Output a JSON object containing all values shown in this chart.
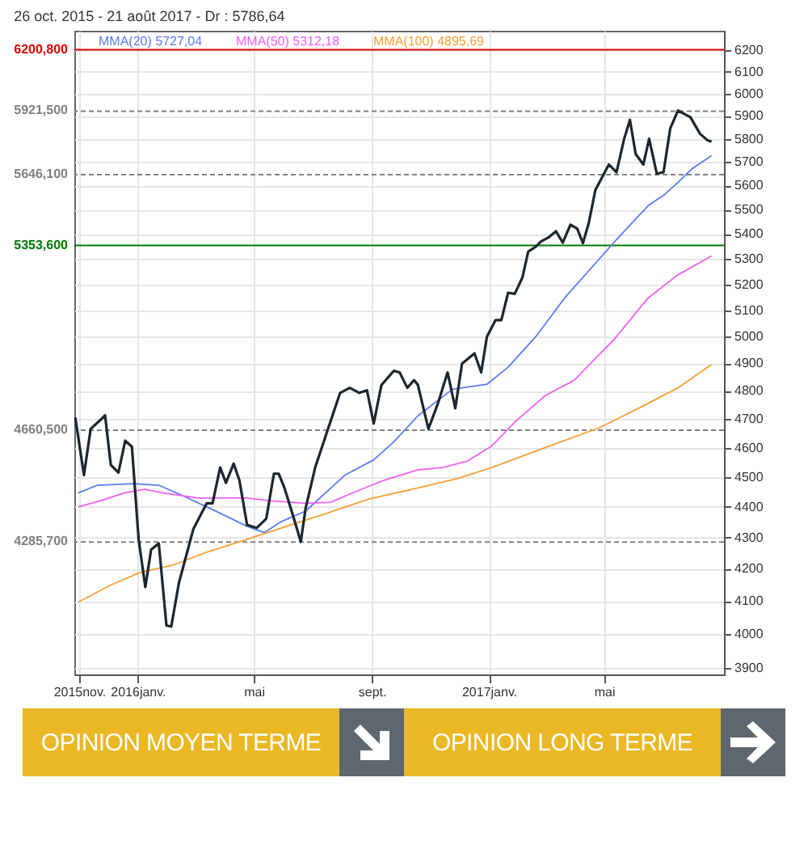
{
  "chart_data": {
    "type": "line",
    "title": "26 oct. 2015 - 21 août 2017 - Dr : 5786,64",
    "annotations": [
      "OPINION MOYEN TERME",
      "OPINION LONG TERME"
    ],
    "xlim": [
      "2015-10-27",
      "2017-09-03"
    ],
    "xticks": [
      {
        "value": "2015-11-01",
        "label": "2015nov."
      },
      {
        "value": "2016-01-01",
        "label": "2016janv."
      },
      {
        "value": "2016-05-01",
        "label": "mai"
      },
      {
        "value": "2016-09-01",
        "label": "sept."
      },
      {
        "value": "2017-01-01",
        "label": "2017janv."
      },
      {
        "value": "2017-05-01",
        "label": "mai"
      }
    ],
    "ylim": [
      3880,
      6290
    ],
    "yticks": [
      3900,
      4000,
      4100,
      4200,
      4300,
      4400,
      4500,
      4600,
      4700,
      4800,
      4900,
      5000,
      5100,
      5200,
      5300,
      5400,
      5500,
      5600,
      5700,
      5800,
      5900,
      6000,
      6100,
      6200
    ],
    "log": "y",
    "grid": true,
    "legend": "top left",
    "ref_lines": [
      {
        "axis": "y",
        "value": 6200.8,
        "label": "6200,800",
        "color": "#e00000"
      },
      {
        "axis": "y",
        "value": 5921.5,
        "label": "5921,500",
        "color": "#808080",
        "line_style": "dashed"
      },
      {
        "axis": "y",
        "value": 5646.1,
        "label": "5646,100",
        "color": "#808080",
        "line_style": "dashed"
      },
      {
        "axis": "y",
        "value": 5353.6,
        "label": "5353,600",
        "color": "#007a00"
      },
      {
        "axis": "y",
        "value": 4660.5,
        "label": "4660,500",
        "color": "#808080",
        "line_style": "dashed"
      },
      {
        "axis": "y",
        "value": 4285.7,
        "label": "4285,700",
        "color": "#808080",
        "line_style": "dashed"
      }
    ],
    "series": [
      {
        "name": "MMA(20) 5727,04",
        "color": "#5a7cf2",
        "x": [
          "2015-10-31",
          "2015-11-20",
          "2015-12-28",
          "2016-01-23",
          "2016-02-17",
          "2016-03-19",
          "2016-04-24",
          "2016-05-12",
          "2016-05-30",
          "2016-06-24",
          "2016-08-04",
          "2016-09-03",
          "2016-09-24",
          "2016-10-19",
          "2016-11-24",
          "2016-12-30",
          "2017-01-21",
          "2017-02-19",
          "2017-03-21",
          "2017-04-21",
          "2017-05-12",
          "2017-06-01",
          "2017-06-16",
          "2017-07-02",
          "2017-07-17",
          "2017-08-01",
          "2017-08-21"
        ],
        "values": [
          4446,
          4472,
          4477,
          4472,
          4437,
          4391,
          4336,
          4316,
          4352,
          4386,
          4506,
          4558,
          4620,
          4711,
          4806,
          4824,
          4886,
          5000,
          5147,
          5278,
          5369,
          5453,
          5516,
          5559,
          5613,
          5672,
          5727
        ]
      },
      {
        "name": "MMA(50) 5312,18",
        "color": "#f060f0",
        "x": [
          "2015-10-31",
          "2015-11-23",
          "2015-12-18",
          "2016-01-08",
          "2016-01-28",
          "2016-03-04",
          "2016-04-24",
          "2016-05-19",
          "2016-06-24",
          "2016-07-20",
          "2016-08-14",
          "2016-09-14",
          "2016-10-19",
          "2016-11-14",
          "2016-12-09",
          "2017-01-04",
          "2017-01-29",
          "2017-03-01",
          "2017-03-31",
          "2017-05-12",
          "2017-06-16",
          "2017-07-17",
          "2017-08-21"
        ],
        "values": [
          4400,
          4420,
          4446,
          4458,
          4446,
          4429,
          4429,
          4420,
          4412,
          4415,
          4449,
          4489,
          4524,
          4532,
          4553,
          4606,
          4692,
          4784,
          4839,
          4991,
          5147,
          5237,
          5312
        ]
      },
      {
        "name": "MMA(100) 4895,69",
        "color": "#f5a033",
        "x": [
          "2015-10-31",
          "2015-12-03",
          "2016-01-03",
          "2016-02-07",
          "2016-03-13",
          "2016-04-24",
          "2016-06-04",
          "2016-07-15",
          "2016-08-29",
          "2016-10-19",
          "2016-11-29",
          "2017-01-04",
          "2017-02-24",
          "2017-04-26",
          "2017-06-06",
          "2017-07-17",
          "2017-08-21"
        ],
        "values": [
          4096,
          4148,
          4188,
          4212,
          4253,
          4294,
          4336,
          4378,
          4426,
          4463,
          4494,
          4532,
          4594,
          4669,
          4738,
          4811,
          4896
        ]
      },
      {
        "color": "#1c2630",
        "x": [
          "2015-10-28",
          "2015-11-06",
          "2015-11-13",
          "2015-11-23",
          "2015-11-28",
          "2015-12-04",
          "2015-12-12",
          "2015-12-19",
          "2015-12-26",
          "2016-01-02",
          "2016-01-09",
          "2016-01-15",
          "2016-01-23",
          "2016-01-31",
          "2016-02-05",
          "2016-02-13",
          "2016-02-28",
          "2016-03-13",
          "2016-03-19",
          "2016-03-27",
          "2016-04-02",
          "2016-04-10",
          "2016-04-16",
          "2016-04-24",
          "2016-05-04",
          "2016-05-14",
          "2016-05-22",
          "2016-05-27",
          "2016-06-02",
          "2016-06-11",
          "2016-06-19",
          "2016-06-24",
          "2016-07-04",
          "2016-07-20",
          "2016-07-30",
          "2016-08-09",
          "2016-08-19",
          "2016-08-27",
          "2016-09-03",
          "2016-09-11",
          "2016-09-24",
          "2016-09-30",
          "2016-10-08",
          "2016-10-15",
          "2016-10-19",
          "2016-10-30",
          "2016-11-09",
          "2016-11-19",
          "2016-11-27",
          "2016-12-04",
          "2016-12-17",
          "2016-12-24",
          "2016-12-30",
          "2017-01-08",
          "2017-01-14",
          "2017-01-21",
          "2017-01-28",
          "2017-02-05",
          "2017-02-11",
          "2017-02-19",
          "2017-02-24",
          "2017-03-04",
          "2017-03-12",
          "2017-03-19",
          "2017-03-27",
          "2017-04-03",
          "2017-04-09",
          "2017-04-15",
          "2017-04-22",
          "2017-04-29",
          "2017-05-06",
          "2017-05-14",
          "2017-05-22",
          "2017-05-28",
          "2017-06-03",
          "2017-06-11",
          "2017-06-17",
          "2017-06-25",
          "2017-07-02",
          "2017-07-09",
          "2017-07-17",
          "2017-07-30",
          "2017-08-09",
          "2017-08-17",
          "2017-08-21"
        ],
        "values": [
          4705,
          4506,
          4665,
          4696,
          4713,
          4541,
          4515,
          4624,
          4603,
          4294,
          4143,
          4261,
          4281,
          4025,
          4022,
          4156,
          4327,
          4412,
          4412,
          4532,
          4480,
          4545,
          4489,
          4341,
          4331,
          4361,
          4511,
          4511,
          4463,
          4370,
          4286,
          4395,
          4532,
          4692,
          4793,
          4811,
          4793,
          4802,
          4684,
          4821,
          4873,
          4867,
          4811,
          4839,
          4822,
          4665,
          4756,
          4867,
          4738,
          4899,
          4937,
          4867,
          5000,
          5062,
          5062,
          5167,
          5163,
          5227,
          5329,
          5349,
          5369,
          5386,
          5411,
          5365,
          5438,
          5422,
          5363,
          5443,
          5581,
          5635,
          5689,
          5656,
          5800,
          5883,
          5734,
          5689,
          5800,
          5650,
          5656,
          5845,
          5924,
          5895,
          5822,
          5793,
          5787
        ]
      }
    ]
  }
}
